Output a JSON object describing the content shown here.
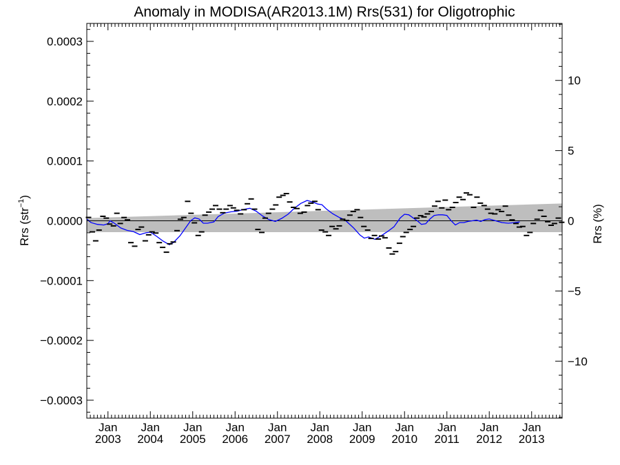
{
  "chart_data": {
    "type": "scatter",
    "title": "Anomaly in MODISA(AR2013.1M) Rrs(531) for Oligotrophic",
    "ylabel_left": {
      "base": "Rrs (str",
      "sup": "−1",
      "end": ")"
    },
    "ylabel_right": "Rrs (%)",
    "y_left_range": [
      -0.00033,
      0.00033
    ],
    "y_right_range": [
      -14.06,
      14.06
    ],
    "x_range": [
      2002.5,
      2013.72
    ],
    "grid": false,
    "legend": "none",
    "colors": {
      "smooth": "#0000ff",
      "band": "#bebebe",
      "points": "#000000",
      "zero_line": "#000000"
    },
    "y_left_ticks": [
      {
        "value": 0.0003,
        "label": "0.0003"
      },
      {
        "value": 0.0002,
        "label": "0.0002"
      },
      {
        "value": 0.0001,
        "label": "0.0001"
      },
      {
        "value": 0.0,
        "label": "0.0000"
      },
      {
        "value": -0.0001,
        "label": "−0.0001"
      },
      {
        "value": -0.0002,
        "label": "−0.0002"
      },
      {
        "value": -0.0003,
        "label": "−0.0003"
      }
    ],
    "y_right_ticks": [
      {
        "value": 10,
        "label": "10"
      },
      {
        "value": 5,
        "label": "5"
      },
      {
        "value": 0,
        "label": "0"
      },
      {
        "value": -5,
        "label": "−5"
      },
      {
        "value": -10,
        "label": "−10"
      }
    ],
    "x_ticks": [
      {
        "value": 2003.0,
        "month": "Jan",
        "year": "2003"
      },
      {
        "value": 2004.0,
        "month": "Jan",
        "year": "2004"
      },
      {
        "value": 2005.0,
        "month": "Jan",
        "year": "2005"
      },
      {
        "value": 2006.0,
        "month": "Jan",
        "year": "2006"
      },
      {
        "value": 2007.0,
        "month": "Jan",
        "year": "2007"
      },
      {
        "value": 2008.0,
        "month": "Jan",
        "year": "2008"
      },
      {
        "value": 2009.0,
        "month": "Jan",
        "year": "2009"
      },
      {
        "value": 2010.0,
        "month": "Jan",
        "year": "2010"
      },
      {
        "value": 2011.0,
        "month": "Jan",
        "year": "2011"
      },
      {
        "value": 2012.0,
        "month": "Jan",
        "year": "2012"
      },
      {
        "value": 2013.0,
        "month": "Jan",
        "year": "2013"
      }
    ],
    "band": {
      "x": [
        2002.5,
        2013.72
      ],
      "upper": [
        4.5e-06,
        2.9e-05
      ],
      "lower": [
        -1.9e-05,
        -1.9e-05
      ]
    },
    "points": [
      {
        "x": 2002.54,
        "y": 5.6e-06
      },
      {
        "x": 2002.63,
        "y": -1.85e-05
      },
      {
        "x": 2002.71,
        "y": -3.35e-05
      },
      {
        "x": 2002.79,
        "y": -1.55e-05
      },
      {
        "x": 2002.88,
        "y": 7.5e-06
      },
      {
        "x": 2002.96,
        "y": 4.5e-06
      },
      {
        "x": 2003.04,
        "y": -5.5e-06
      },
      {
        "x": 2003.13,
        "y": -8.5e-06
      },
      {
        "x": 2003.21,
        "y": 1.25e-05
      },
      {
        "x": 2003.29,
        "y": -4.5e-06
      },
      {
        "x": 2003.38,
        "y": 5.5e-06
      },
      {
        "x": 2003.46,
        "y": 1.5e-06
      },
      {
        "x": 2003.54,
        "y": -3.65e-05
      },
      {
        "x": 2003.63,
        "y": -4.25e-05
      },
      {
        "x": 2003.71,
        "y": -1.45e-05
      },
      {
        "x": 2003.79,
        "y": -1.05e-05
      },
      {
        "x": 2003.88,
        "y": -3.35e-05
      },
      {
        "x": 2003.96,
        "y": -2.35e-05
      },
      {
        "x": 2004.04,
        "y": -1.85e-05
      },
      {
        "x": 2004.13,
        "y": -2.05e-05
      },
      {
        "x": 2004.21,
        "y": -3.65e-05
      },
      {
        "x": 2004.29,
        "y": -4.45e-05
      },
      {
        "x": 2004.38,
        "y": -5.25e-05
      },
      {
        "x": 2004.46,
        "y": -3.85e-05
      },
      {
        "x": 2004.54,
        "y": -3.55e-05
      },
      {
        "x": 2004.63,
        "y": -1.65e-05
      },
      {
        "x": 2004.71,
        "y": 2.5e-06
      },
      {
        "x": 2004.79,
        "y": 5.5e-06
      },
      {
        "x": 2004.88,
        "y": 3.25e-05
      },
      {
        "x": 2004.96,
        "y": 1.25e-05
      },
      {
        "x": 2005.04,
        "y": -3.5e-06
      },
      {
        "x": 2005.13,
        "y": -2.45e-05
      },
      {
        "x": 2005.21,
        "y": -1.85e-05
      },
      {
        "x": 2005.29,
        "y": 9.5e-06
      },
      {
        "x": 2005.38,
        "y": 1.45e-05
      },
      {
        "x": 2005.46,
        "y": 1.95e-05
      },
      {
        "x": 2005.54,
        "y": 2.55e-05
      },
      {
        "x": 2005.63,
        "y": 1.95e-05
      },
      {
        "x": 2005.71,
        "y": 1.35e-05
      },
      {
        "x": 2005.79,
        "y": 1.95e-05
      },
      {
        "x": 2005.88,
        "y": 2.55e-05
      },
      {
        "x": 2005.96,
        "y": 2.15e-05
      },
      {
        "x": 2006.04,
        "y": 1.75e-05
      },
      {
        "x": 2006.13,
        "y": 1.15e-05
      },
      {
        "x": 2006.21,
        "y": 1.85e-05
      },
      {
        "x": 2006.29,
        "y": 2.85e-05
      },
      {
        "x": 2006.38,
        "y": 3.65e-05
      },
      {
        "x": 2006.46,
        "y": 1.95e-05
      },
      {
        "x": 2006.54,
        "y": -1.45e-05
      },
      {
        "x": 2006.63,
        "y": -1.95e-05
      },
      {
        "x": 2006.71,
        "y": 4.5e-06
      },
      {
        "x": 2006.79,
        "y": 1.25e-05
      },
      {
        "x": 2006.88,
        "y": 1.95e-05
      },
      {
        "x": 2006.96,
        "y": 2.65e-05
      },
      {
        "x": 2007.04,
        "y": 3.95e-05
      },
      {
        "x": 2007.13,
        "y": 4.25e-05
      },
      {
        "x": 2007.21,
        "y": 4.55e-05
      },
      {
        "x": 2007.29,
        "y": 3.15e-05
      },
      {
        "x": 2007.38,
        "y": 2.25e-05
      },
      {
        "x": 2007.46,
        "y": 2.05e-05
      },
      {
        "x": 2007.54,
        "y": 1.25e-05
      },
      {
        "x": 2007.63,
        "y": 1.45e-05
      },
      {
        "x": 2007.71,
        "y": 2.55e-05
      },
      {
        "x": 2007.79,
        "y": 2.95e-05
      },
      {
        "x": 2007.88,
        "y": 3.25e-05
      },
      {
        "x": 2007.96,
        "y": 1.85e-05
      },
      {
        "x": 2008.04,
        "y": -1.55e-05
      },
      {
        "x": 2008.13,
        "y": -1.85e-05
      },
      {
        "x": 2008.21,
        "y": -2.45e-05
      },
      {
        "x": 2008.29,
        "y": -9.5e-06
      },
      {
        "x": 2008.38,
        "y": -1.35e-05
      },
      {
        "x": 2008.46,
        "y": -8.5e-06
      },
      {
        "x": 2008.54,
        "y": 2.5e-06
      },
      {
        "x": 2008.63,
        "y": 5e-07
      },
      {
        "x": 2008.71,
        "y": 9.5e-06
      },
      {
        "x": 2008.79,
        "y": 1.55e-05
      },
      {
        "x": 2008.88,
        "y": 1.85e-05
      },
      {
        "x": 2008.96,
        "y": 5.5e-06
      },
      {
        "x": 2009.04,
        "y": -9.5e-06
      },
      {
        "x": 2009.13,
        "y": -1.55e-05
      },
      {
        "x": 2009.21,
        "y": -2.95e-05
      },
      {
        "x": 2009.29,
        "y": -2.45e-05
      },
      {
        "x": 2009.38,
        "y": -3.05e-05
      },
      {
        "x": 2009.46,
        "y": -2.55e-05
      },
      {
        "x": 2009.54,
        "y": -2.85e-05
      },
      {
        "x": 2009.63,
        "y": -4.55e-05
      },
      {
        "x": 2009.71,
        "y": -5.55e-05
      },
      {
        "x": 2009.79,
        "y": -5.15e-05
      },
      {
        "x": 2009.88,
        "y": -3.75e-05
      },
      {
        "x": 2009.96,
        "y": -2.65e-05
      },
      {
        "x": 2010.04,
        "y": -1.95e-05
      },
      {
        "x": 2010.13,
        "y": -1.45e-05
      },
      {
        "x": 2010.21,
        "y": -9.5e-06
      },
      {
        "x": 2010.29,
        "y": 4.5e-06
      },
      {
        "x": 2010.38,
        "y": 8.5e-06
      },
      {
        "x": 2010.46,
        "y": 6.5e-06
      },
      {
        "x": 2010.54,
        "y": 1.15e-05
      },
      {
        "x": 2010.63,
        "y": 1.55e-05
      },
      {
        "x": 2010.71,
        "y": 2.45e-05
      },
      {
        "x": 2010.79,
        "y": 3.25e-05
      },
      {
        "x": 2010.88,
        "y": 2.15e-05
      },
      {
        "x": 2010.96,
        "y": 3.45e-05
      },
      {
        "x": 2011.04,
        "y": 1.85e-05
      },
      {
        "x": 2011.13,
        "y": 2.25e-05
      },
      {
        "x": 2011.21,
        "y": 3.05e-05
      },
      {
        "x": 2011.29,
        "y": 3.95e-05
      },
      {
        "x": 2011.38,
        "y": 3.55e-05
      },
      {
        "x": 2011.46,
        "y": 4.65e-05
      },
      {
        "x": 2011.54,
        "y": 4.35e-05
      },
      {
        "x": 2011.63,
        "y": 2.25e-05
      },
      {
        "x": 2011.71,
        "y": 3.95e-05
      },
      {
        "x": 2011.79,
        "y": 2.95e-05
      },
      {
        "x": 2011.88,
        "y": 2.55e-05
      },
      {
        "x": 2011.96,
        "y": 1.95e-05
      },
      {
        "x": 2012.04,
        "y": 1.25e-05
      },
      {
        "x": 2012.13,
        "y": 1.15e-05
      },
      {
        "x": 2012.21,
        "y": 1.85e-05
      },
      {
        "x": 2012.29,
        "y": 1.55e-05
      },
      {
        "x": 2012.38,
        "y": 2.45e-05
      },
      {
        "x": 2012.46,
        "y": 9.5e-06
      },
      {
        "x": 2012.54,
        "y": 1.5e-06
      },
      {
        "x": 2012.63,
        "y": -4.5e-06
      },
      {
        "x": 2012.71,
        "y": -1.05e-05
      },
      {
        "x": 2012.79,
        "y": -9.5e-06
      },
      {
        "x": 2012.88,
        "y": -2.45e-05
      },
      {
        "x": 2012.96,
        "y": -1.95e-05
      },
      {
        "x": 2013.04,
        "y": -4.5e-06
      },
      {
        "x": 2013.13,
        "y": 2.5e-06
      },
      {
        "x": 2013.21,
        "y": 1.75e-05
      },
      {
        "x": 2013.29,
        "y": 7.5e-06
      },
      {
        "x": 2013.38,
        "y": -1.5e-06
      },
      {
        "x": 2013.46,
        "y": -7.5e-06
      },
      {
        "x": 2013.54,
        "y": -4.5e-06
      },
      {
        "x": 2013.63,
        "y": 4.5e-06
      },
      {
        "x": 2013.71,
        "y": -2.5e-06
      }
    ],
    "smooth_line": [
      [
        2002.5,
        3e-06
      ],
      [
        2002.6,
        -3e-06
      ],
      [
        2002.75,
        -6e-06
      ],
      [
        2002.9,
        -7e-06
      ],
      [
        2003.0,
        -5e-06
      ],
      [
        2003.05,
        0.0
      ],
      [
        2003.15,
        -4e-06
      ],
      [
        2003.3,
        -1.2e-05
      ],
      [
        2003.45,
        -1.6e-05
      ],
      [
        2003.6,
        -1.8e-05
      ],
      [
        2003.75,
        -2.3e-05
      ],
      [
        2003.9,
        -2e-05
      ],
      [
        2004.0,
        -1.9e-05
      ],
      [
        2004.15,
        -2.6e-05
      ],
      [
        2004.3,
        -3.4e-05
      ],
      [
        2004.45,
        -4e-05
      ],
      [
        2004.55,
        -3.6e-05
      ],
      [
        2004.7,
        -2.5e-05
      ],
      [
        2004.85,
        -1e-05
      ],
      [
        2004.95,
        0.0
      ],
      [
        2005.05,
        5e-06
      ],
      [
        2005.15,
        3e-06
      ],
      [
        2005.25,
        -4e-06
      ],
      [
        2005.35,
        -4e-06
      ],
      [
        2005.5,
        -2e-06
      ],
      [
        2005.6,
        7e-06
      ],
      [
        2005.75,
        1.3e-05
      ],
      [
        2005.9,
        1.5e-05
      ],
      [
        2006.05,
        1.6e-05
      ],
      [
        2006.2,
        1.9e-05
      ],
      [
        2006.35,
        2.1e-05
      ],
      [
        2006.5,
        1.6e-05
      ],
      [
        2006.65,
        8e-06
      ],
      [
        2006.8,
        2e-06
      ],
      [
        2006.95,
        -1e-06
      ],
      [
        2007.1,
        4e-06
      ],
      [
        2007.25,
        1.1e-05
      ],
      [
        2007.4,
        2.1e-05
      ],
      [
        2007.55,
        2.9e-05
      ],
      [
        2007.7,
        3.4e-05
      ],
      [
        2007.85,
        3.1e-05
      ],
      [
        2007.95,
        2.8e-05
      ],
      [
        2008.05,
        2.7e-05
      ],
      [
        2008.15,
        2e-05
      ],
      [
        2008.3,
        1.2e-05
      ],
      [
        2008.45,
        6e-06
      ],
      [
        2008.6,
        1e-06
      ],
      [
        2008.8,
        -1.2e-05
      ],
      [
        2008.95,
        -2.4e-05
      ],
      [
        2009.05,
        -2.9e-05
      ],
      [
        2009.15,
        -2.7e-05
      ],
      [
        2009.3,
        -3.1e-05
      ],
      [
        2009.45,
        -2.5e-05
      ],
      [
        2009.6,
        -1.8e-05
      ],
      [
        2009.75,
        -1e-05
      ],
      [
        2009.9,
        5e-06
      ],
      [
        2010.0,
        1.1e-05
      ],
      [
        2010.1,
        1e-05
      ],
      [
        2010.2,
        5e-06
      ],
      [
        2010.3,
        0.0
      ],
      [
        2010.4,
        -6e-06
      ],
      [
        2010.5,
        -5e-06
      ],
      [
        2010.6,
        3e-06
      ],
      [
        2010.7,
        9e-06
      ],
      [
        2010.8,
        1e-05
      ],
      [
        2010.9,
        1e-05
      ],
      [
        2011.0,
        9e-06
      ],
      [
        2011.1,
        0.0
      ],
      [
        2011.2,
        -7e-06
      ],
      [
        2011.3,
        -3e-06
      ],
      [
        2011.4,
        -3e-06
      ],
      [
        2011.5,
        -1e-06
      ],
      [
        2011.6,
        0.0
      ],
      [
        2011.7,
        1e-06
      ],
      [
        2011.8,
        -1e-06
      ],
      [
        2011.9,
        2e-06
      ],
      [
        2012.0,
        3e-06
      ],
      [
        2012.1,
        1e-06
      ],
      [
        2012.2,
        -1e-06
      ],
      [
        2012.3,
        -3e-06
      ],
      [
        2012.45,
        -4e-06
      ],
      [
        2012.6,
        -3e-06
      ],
      [
        2012.72,
        -2e-06
      ]
    ]
  }
}
